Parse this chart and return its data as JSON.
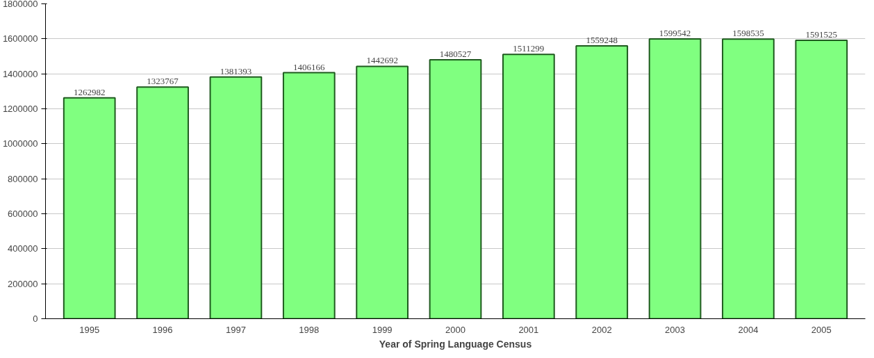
{
  "chart_data": {
    "type": "bar",
    "xlabel": "Year of Spring Language Census",
    "categories": [
      "1995",
      "1996",
      "1997",
      "1998",
      "1999",
      "2000",
      "2001",
      "2002",
      "2003",
      "2004",
      "2005"
    ],
    "values": [
      1262982,
      1323767,
      1381393,
      1406166,
      1442692,
      1480527,
      1511299,
      1559248,
      1599542,
      1598535,
      1591525
    ],
    "color": "#80ff80",
    "ylim": [
      0,
      1800000
    ],
    "yticks": [
      0,
      200000,
      400000,
      600000,
      800000,
      1000000,
      1200000,
      1400000,
      1600000,
      1800000
    ],
    "grid": "y",
    "data_labels": true
  }
}
